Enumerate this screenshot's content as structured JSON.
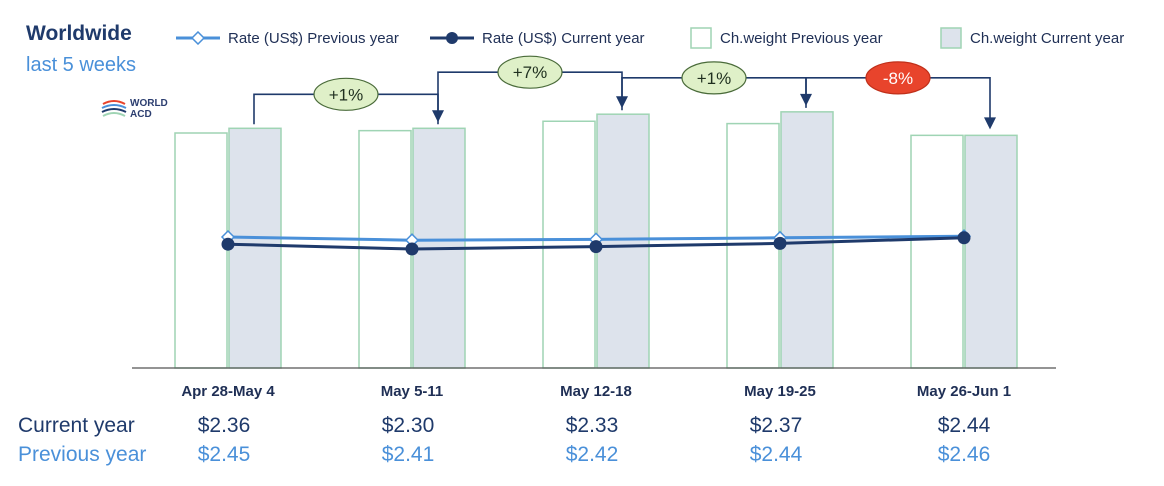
{
  "header": {
    "title": "Worldwide",
    "subtitle": "last 5 weeks",
    "logo_text": "WORLD ACD"
  },
  "legend": [
    {
      "label": "Rate (US$) Previous year",
      "icon": "line-diamond-icon",
      "color": "#4a90d9"
    },
    {
      "label": "Rate (US$) Current year",
      "icon": "line-dot-icon",
      "color": "#1f3a6b"
    },
    {
      "label": "Ch.weight Previous year",
      "icon": "box-white-icon",
      "color": "#9fd4b4"
    },
    {
      "label": "Ch.weight Current year",
      "icon": "box-grey-icon",
      "color": "#dde3ec"
    }
  ],
  "chart_data": {
    "type": "bar",
    "categories": [
      "Apr 28-May 4",
      "May 5-11",
      "May 12-18",
      "May 19-25",
      "May 26-Jun 1"
    ],
    "series": [
      {
        "name": "Ch.weight Previous year",
        "type": "bar",
        "values": [
          100,
          101,
          105,
          104,
          99
        ]
      },
      {
        "name": "Ch.weight Current year",
        "type": "bar",
        "values": [
          102,
          102,
          108,
          109,
          99
        ]
      },
      {
        "name": "Rate (US$) Previous year",
        "type": "line",
        "values": [
          2.45,
          2.41,
          2.42,
          2.44,
          2.46
        ]
      },
      {
        "name": "Rate (US$) Current year",
        "type": "line",
        "values": [
          2.36,
          2.3,
          2.33,
          2.37,
          2.44
        ]
      }
    ],
    "changes": [
      {
        "label": "+1%",
        "from": 0,
        "to": 1,
        "color": "#dff0c8"
      },
      {
        "label": "+7%",
        "from": 1,
        "to": 2,
        "color": "#dff0c8"
      },
      {
        "label": "+1%",
        "from": 2,
        "to": 3,
        "color": "#dff0c8"
      },
      {
        "label": "-8%",
        "from": 3,
        "to": 4,
        "color": "#e8442c"
      }
    ]
  },
  "table": {
    "current_label": "Current year",
    "previous_label": "Previous year",
    "current": [
      "$2.36",
      "$2.30",
      "$2.33",
      "$2.37",
      "$2.44"
    ],
    "previous": [
      "$2.45",
      "$2.41",
      "$2.42",
      "$2.44",
      "$2.46"
    ]
  }
}
